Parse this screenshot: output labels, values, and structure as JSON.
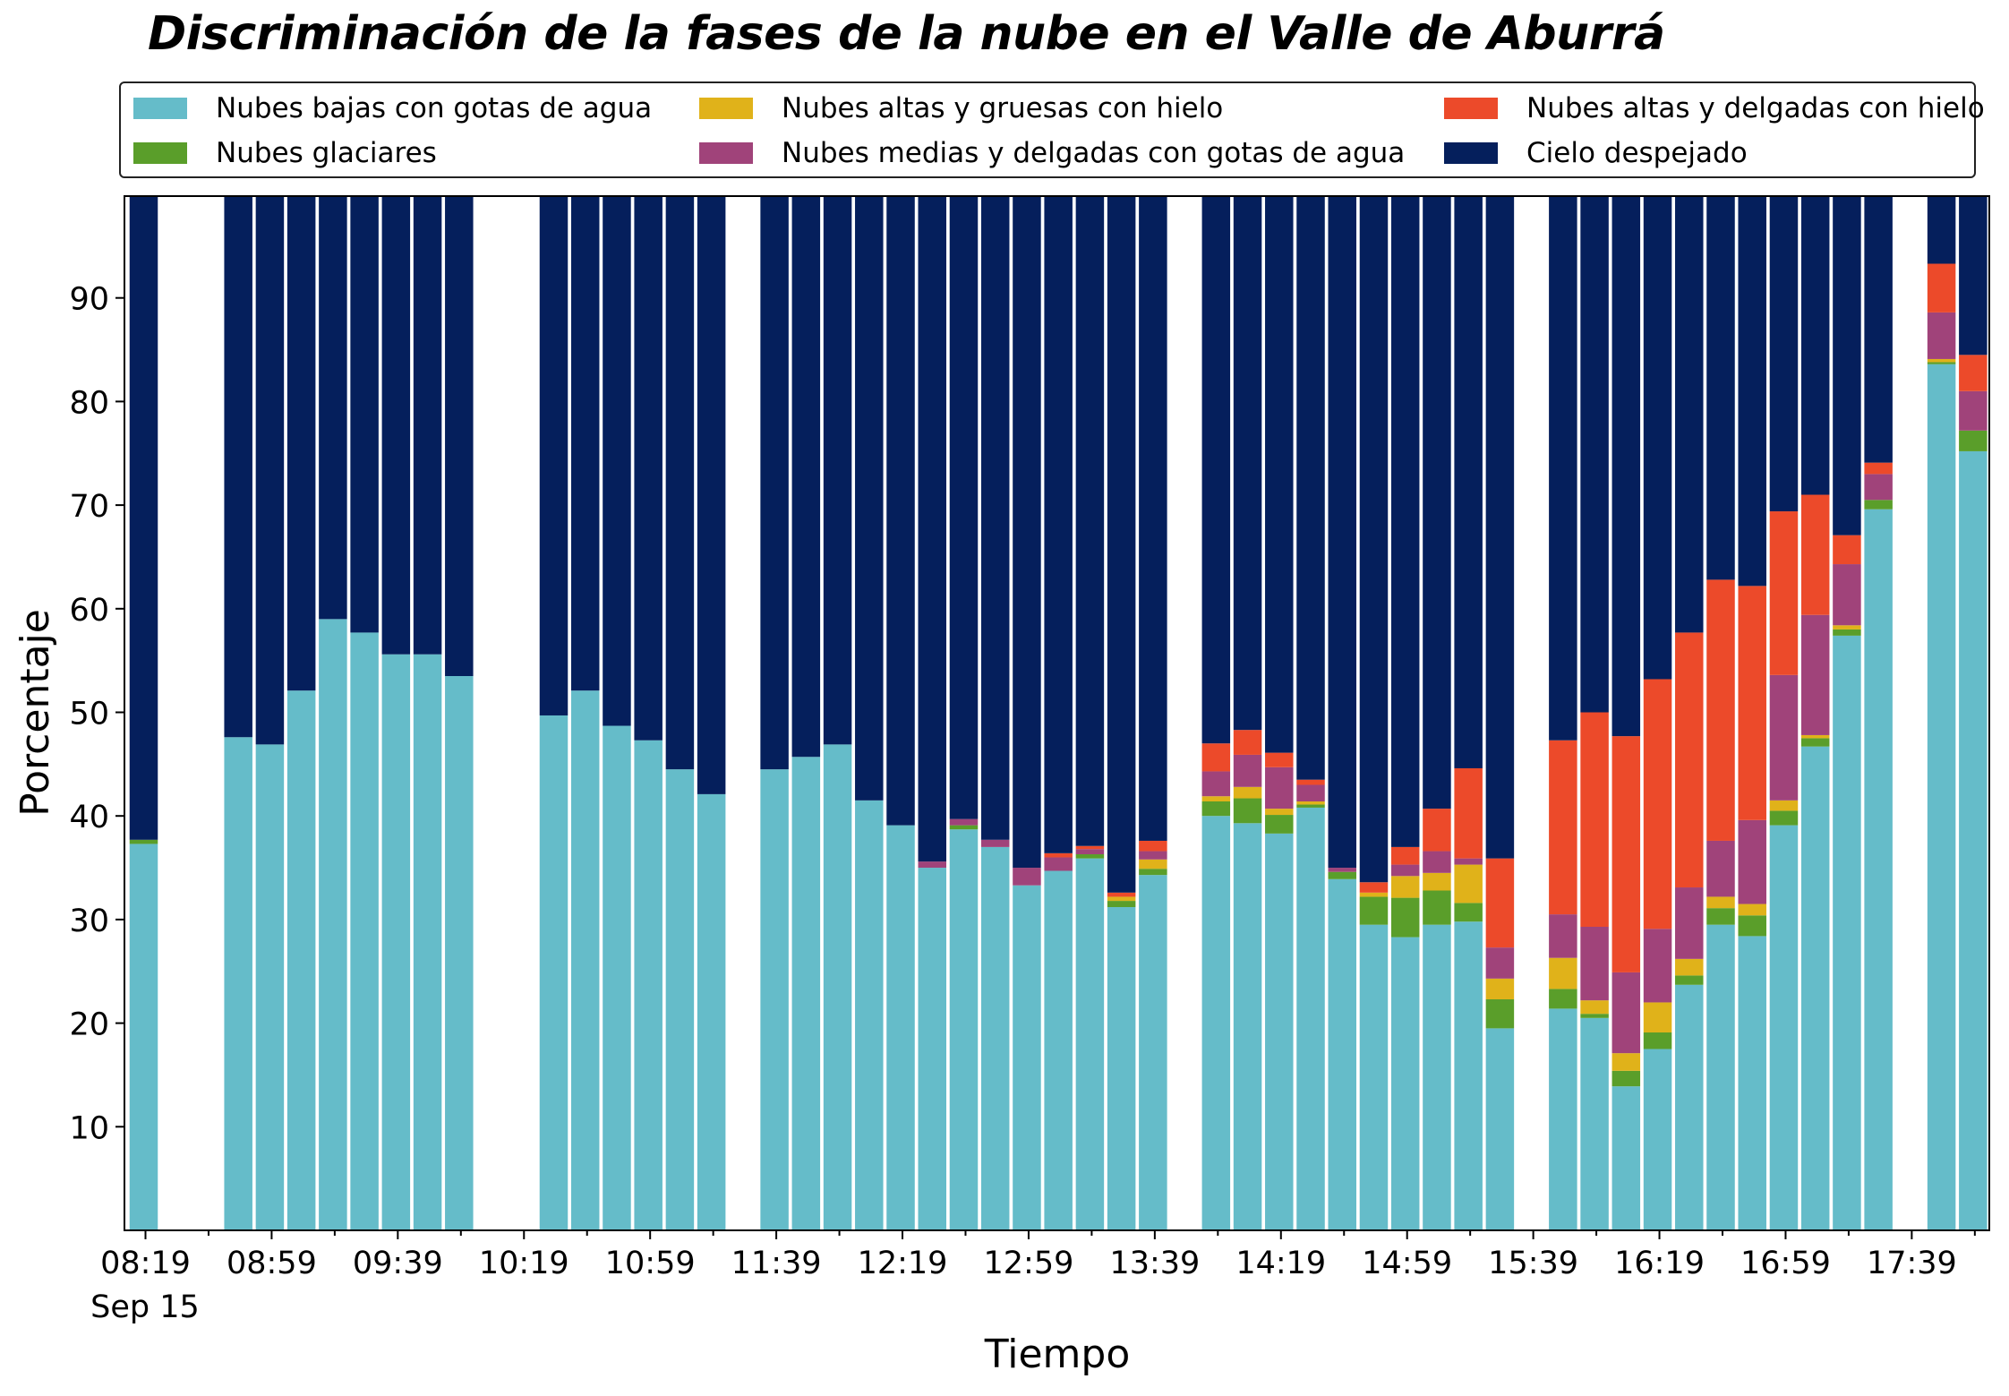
{
  "chart_data": {
    "type": "bar",
    "stacked": true,
    "title": "Discriminación de la fases de la nube en el Valle de Aburrá",
    "xlabel": "Tiempo",
    "ylabel": "Porcentaje",
    "ylim": [
      0,
      100
    ],
    "yticks": [
      10,
      20,
      30,
      40,
      50,
      60,
      70,
      80,
      90
    ],
    "xtick_labels": [
      "08:19",
      "08:59",
      "09:39",
      "10:19",
      "10:59",
      "11:39",
      "12:19",
      "12:59",
      "13:39",
      "14:19",
      "14:59",
      "15:39",
      "16:19",
      "16:59",
      "17:39"
    ],
    "xtick_sublabel": "Sep 15",
    "legend_placement": "top",
    "grid": false,
    "slots_total": 59,
    "series": [
      {
        "name": "Nubes bajas con gotas de agua",
        "color": "#65BCC9"
      },
      {
        "name": "Nubes glaciares",
        "color": "#5A9E2A"
      },
      {
        "name": "Nubes altas y gruesas con hielo",
        "color": "#E0B21A"
      },
      {
        "name": "Nubes medias y delgadas con gotas de agua",
        "color": "#A0437A"
      },
      {
        "name": "Nubes altas y delgadas con hielo",
        "color": "#EC4A2A"
      },
      {
        "name": "Cielo despejado",
        "color": "#051F5C"
      }
    ],
    "bars": [
      {
        "slot": 0,
        "values": [
          37.3,
          0.4,
          0,
          0,
          0,
          62.3
        ]
      },
      {
        "slot": 3,
        "values": [
          47.6,
          0,
          0,
          0,
          0,
          52.4
        ]
      },
      {
        "slot": 4,
        "values": [
          46.9,
          0,
          0,
          0,
          0,
          53.1
        ]
      },
      {
        "slot": 5,
        "values": [
          52.1,
          0,
          0,
          0,
          0,
          47.9
        ]
      },
      {
        "slot": 6,
        "values": [
          59.0,
          0,
          0,
          0,
          0,
          41.0
        ]
      },
      {
        "slot": 7,
        "values": [
          57.7,
          0,
          0,
          0,
          0,
          42.3
        ]
      },
      {
        "slot": 8,
        "values": [
          55.6,
          0,
          0,
          0,
          0,
          44.4
        ]
      },
      {
        "slot": 9,
        "values": [
          55.6,
          0,
          0,
          0,
          0,
          44.4
        ]
      },
      {
        "slot": 10,
        "values": [
          53.5,
          0,
          0,
          0,
          0,
          46.5
        ]
      },
      {
        "slot": 13,
        "values": [
          49.7,
          0,
          0,
          0,
          0,
          50.3
        ]
      },
      {
        "slot": 14,
        "values": [
          52.1,
          0,
          0,
          0,
          0,
          47.9
        ]
      },
      {
        "slot": 15,
        "values": [
          48.7,
          0,
          0,
          0,
          0,
          51.3
        ]
      },
      {
        "slot": 16,
        "values": [
          47.3,
          0,
          0,
          0,
          0,
          52.7
        ]
      },
      {
        "slot": 17,
        "values": [
          44.5,
          0,
          0,
          0,
          0,
          55.5
        ]
      },
      {
        "slot": 18,
        "values": [
          42.1,
          0,
          0,
          0,
          0,
          57.9
        ]
      },
      {
        "slot": 20,
        "values": [
          44.5,
          0,
          0,
          0,
          0,
          55.5
        ]
      },
      {
        "slot": 21,
        "values": [
          45.7,
          0,
          0,
          0,
          0,
          54.3
        ]
      },
      {
        "slot": 22,
        "values": [
          46.9,
          0,
          0,
          0,
          0,
          53.1
        ]
      },
      {
        "slot": 23,
        "values": [
          41.5,
          0,
          0,
          0,
          0,
          58.5
        ]
      },
      {
        "slot": 24,
        "values": [
          39.1,
          0,
          0,
          0,
          0,
          60.9
        ]
      },
      {
        "slot": 25,
        "values": [
          35.0,
          0,
          0,
          0.6,
          0,
          64.4
        ]
      },
      {
        "slot": 26,
        "values": [
          38.7,
          0.4,
          0,
          0.6,
          0,
          60.3
        ]
      },
      {
        "slot": 27,
        "values": [
          37.0,
          0,
          0,
          0.7,
          0,
          62.3
        ]
      },
      {
        "slot": 28,
        "values": [
          33.3,
          0,
          0,
          1.7,
          0,
          65.0
        ]
      },
      {
        "slot": 29,
        "values": [
          34.7,
          0,
          0,
          1.3,
          0.4,
          63.6
        ]
      },
      {
        "slot": 30,
        "values": [
          35.9,
          0.4,
          0,
          0.5,
          0.3,
          62.9
        ]
      },
      {
        "slot": 31,
        "values": [
          31.2,
          0.6,
          0.4,
          0,
          0.4,
          67.4
        ]
      },
      {
        "slot": 32,
        "values": [
          34.3,
          0.6,
          0.9,
          0.8,
          1.0,
          62.4
        ]
      },
      {
        "slot": 34,
        "values": [
          40.0,
          1.4,
          0.5,
          2.4,
          2.7,
          53.0
        ]
      },
      {
        "slot": 35,
        "values": [
          39.3,
          2.4,
          1.1,
          3.1,
          2.4,
          51.7
        ]
      },
      {
        "slot": 36,
        "values": [
          38.3,
          1.8,
          0.6,
          4.0,
          1.4,
          53.9
        ]
      },
      {
        "slot": 37,
        "values": [
          40.8,
          0.3,
          0.3,
          1.6,
          0.5,
          56.5
        ]
      },
      {
        "slot": 38,
        "values": [
          33.9,
          0.7,
          0,
          0.4,
          0,
          65.0
        ]
      },
      {
        "slot": 39,
        "values": [
          29.5,
          2.7,
          0.4,
          0,
          1.0,
          66.4
        ]
      },
      {
        "slot": 40,
        "values": [
          28.3,
          3.8,
          2.1,
          1.1,
          1.7,
          63.0
        ]
      },
      {
        "slot": 41,
        "values": [
          29.5,
          3.3,
          1.7,
          2.1,
          4.1,
          59.3
        ]
      },
      {
        "slot": 42,
        "values": [
          29.8,
          1.8,
          3.7,
          0.6,
          8.7,
          55.4
        ]
      },
      {
        "slot": 43,
        "values": [
          19.5,
          2.8,
          2.0,
          3.0,
          8.6,
          64.1
        ]
      },
      {
        "slot": 45,
        "values": [
          21.4,
          1.9,
          3.0,
          4.2,
          16.8,
          52.7
        ]
      },
      {
        "slot": 46,
        "values": [
          20.5,
          0.4,
          1.3,
          7.1,
          20.7,
          50.0
        ]
      },
      {
        "slot": 47,
        "values": [
          13.9,
          1.5,
          1.7,
          7.8,
          22.8,
          52.3
        ]
      },
      {
        "slot": 48,
        "values": [
          17.5,
          1.6,
          2.9,
          7.1,
          24.1,
          46.8
        ]
      },
      {
        "slot": 49,
        "values": [
          23.7,
          0.9,
          1.6,
          6.9,
          24.6,
          42.3
        ]
      },
      {
        "slot": 50,
        "values": [
          29.5,
          1.6,
          1.1,
          5.4,
          25.2,
          37.2
        ]
      },
      {
        "slot": 51,
        "values": [
          28.4,
          2.0,
          1.1,
          8.1,
          22.6,
          37.8
        ]
      },
      {
        "slot": 52,
        "values": [
          39.1,
          1.4,
          1.0,
          12.1,
          15.8,
          30.6
        ]
      },
      {
        "slot": 53,
        "values": [
          46.7,
          0.8,
          0.3,
          11.6,
          11.6,
          29.0
        ]
      },
      {
        "slot": 54,
        "values": [
          57.4,
          0.6,
          0.4,
          5.9,
          2.8,
          32.9
        ]
      },
      {
        "slot": 55,
        "values": [
          69.6,
          0.9,
          0,
          2.5,
          1.1,
          25.9
        ]
      },
      {
        "slot": 57,
        "values": [
          83.6,
          0.2,
          0.3,
          4.5,
          4.7,
          6.7
        ]
      },
      {
        "slot": 58,
        "values": [
          75.2,
          2.0,
          0,
          3.8,
          3.5,
          15.5
        ]
      }
    ]
  }
}
